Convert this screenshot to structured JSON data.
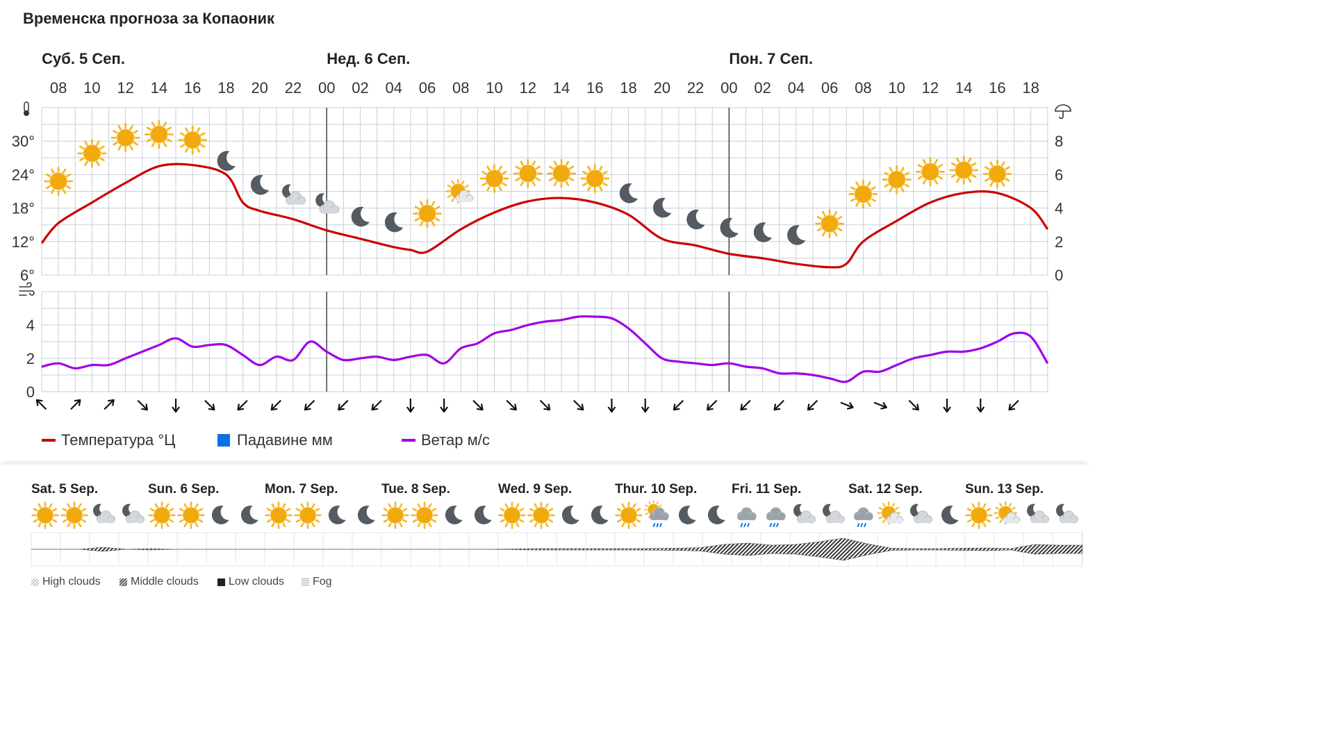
{
  "title": "Временска прогноза за Копаоник",
  "colors": {
    "temperature": "#cc0000",
    "precipitation": "#0a6ee6",
    "wind": "#a000e6",
    "grid": "#c8ced6",
    "day_divider": "#444444",
    "sun": "#f2a90c",
    "moon": "#555b63",
    "cloud": "#d4d7db"
  },
  "legend": {
    "temperature": "Температура °Ц",
    "precipitation": "Падавине мм",
    "wind": "Ветар м/с"
  },
  "chart_data": [
    {
      "type": "line",
      "title": "",
      "days": [
        {
          "label": "Суб. 5 Сеп.",
          "start_hour": "08"
        },
        {
          "label": "Нед. 6 Сеп.",
          "start_hour": "00"
        },
        {
          "label": "Пон. 7 Сеп.",
          "start_hour": "00"
        }
      ],
      "x_ticks": [
        "08",
        "10",
        "12",
        "14",
        "16",
        "18",
        "20",
        "22",
        "00",
        "02",
        "04",
        "06",
        "08",
        "10",
        "12",
        "14",
        "16",
        "18",
        "20",
        "22",
        "00",
        "02",
        "04",
        "06",
        "08",
        "10",
        "12",
        "14",
        "16",
        "18"
      ],
      "y_left": {
        "ticks": [
          "30°",
          "24°",
          "18°",
          "12°",
          "6°"
        ],
        "range": [
          6,
          36
        ],
        "unit": "°C"
      },
      "y_right": {
        "ticks": [
          "8",
          "6",
          "4",
          "2",
          "0"
        ],
        "range": [
          0,
          10
        ],
        "unit": "mm"
      },
      "grid": true,
      "series": [
        {
          "name": "Температура °Ц",
          "x": [
            "07:00",
            "08:00",
            "10:00",
            "12:00",
            "14:00",
            "16:00",
            "18:00",
            "19:00",
            "20:00",
            "22:00",
            "00:00",
            "02:00",
            "04:00",
            "05:00",
            "06:00",
            "08:00",
            "10:00",
            "12:00",
            "14:00",
            "16:00",
            "18:00",
            "20:00",
            "22:00",
            "00:00",
            "02:00",
            "04:00",
            "06:00",
            "07:00",
            "08:00",
            "10:00",
            "12:00",
            "14:00",
            "16:00",
            "18:00",
            "19:00"
          ],
          "y": [
            11.7,
            15.3,
            19.0,
            22.5,
            25.5,
            25.7,
            24.0,
            19.0,
            17.5,
            16.0,
            14.0,
            12.5,
            11.0,
            10.5,
            10.2,
            14.2,
            17.2,
            19.2,
            19.8,
            19.0,
            16.8,
            12.5,
            11.3,
            9.8,
            9.0,
            8.0,
            7.4,
            8.0,
            12.0,
            15.7,
            19.0,
            20.7,
            20.7,
            18.0,
            14.2
          ]
        }
      ],
      "weather_icons": [
        "sun",
        "sun",
        "sun",
        "sun",
        "sun",
        "moon",
        "moon",
        "moon-cloud",
        "moon-cloud",
        "moon",
        "moon",
        "sun",
        "sun-cloud",
        "sun",
        "sun",
        "sun",
        "sun",
        "moon",
        "moon",
        "moon",
        "moon",
        "moon",
        "moon",
        "sun",
        "sun",
        "sun",
        "sun",
        "sun",
        "sun"
      ],
      "weather_icon_levels": [
        22.8,
        27.8,
        30.6,
        31.2,
        30.2,
        26.4,
        22.1,
        20.1,
        18.5,
        16.4,
        15.4,
        17.0,
        20.6,
        23.3,
        24.2,
        24.2,
        23.3,
        20.6,
        18.0,
        15.9,
        14.4,
        13.6,
        13.1,
        15.2,
        20.5,
        23.1,
        24.5,
        24.8,
        24.1
      ]
    },
    {
      "type": "line",
      "title": "",
      "y_left": {
        "ticks": [
          "4",
          "2",
          "0"
        ],
        "range": [
          0,
          6
        ],
        "unit": "m/s"
      },
      "grid": true,
      "series": [
        {
          "name": "Ветар м/с",
          "x": [
            "07:00",
            "08:00",
            "09:00",
            "10:00",
            "11:00",
            "12:00",
            "13:00",
            "14:00",
            "15:00",
            "16:00",
            "17:00",
            "18:00",
            "19:00",
            "20:00",
            "21:00",
            "22:00",
            "23:00",
            "00:00",
            "01:00",
            "02:00",
            "03:00",
            "04:00",
            "05:00",
            "06:00",
            "07:00",
            "08:00",
            "09:00",
            "10:00",
            "11:00",
            "12:00",
            "13:00",
            "14:00",
            "15:00",
            "16:00",
            "17:00",
            "18:00",
            "19:00",
            "20:00",
            "21:00",
            "22:00",
            "23:00",
            "00:00",
            "01:00",
            "02:00",
            "03:00",
            "04:00",
            "05:00",
            "06:00",
            "07:00",
            "08:00",
            "09:00",
            "10:00",
            "11:00",
            "12:00",
            "13:00",
            "14:00",
            "15:00",
            "16:00",
            "17:00",
            "18:00",
            "19:00"
          ],
          "y": [
            1.5,
            1.7,
            1.4,
            1.6,
            1.6,
            2.0,
            2.4,
            2.8,
            3.2,
            2.7,
            2.8,
            2.8,
            2.2,
            1.6,
            2.1,
            1.9,
            3.0,
            2.4,
            1.9,
            2.0,
            2.1,
            1.9,
            2.1,
            2.2,
            1.7,
            2.6,
            2.9,
            3.5,
            3.7,
            4.0,
            4.2,
            4.3,
            4.5,
            4.5,
            4.4,
            3.8,
            2.9,
            2.0,
            1.8,
            1.7,
            1.6,
            1.7,
            1.5,
            1.4,
            1.1,
            1.1,
            1.0,
            0.8,
            0.6,
            1.2,
            1.2,
            1.6,
            2.0,
            2.2,
            2.4,
            2.4,
            2.6,
            3.0,
            3.5,
            3.3,
            1.7
          ]
        }
      ],
      "wind_directions": [
        "NW",
        "NE",
        "NE",
        "SE",
        "S",
        "SE",
        "SW",
        "SW",
        "SW",
        "SW",
        "SW",
        "S",
        "S",
        "SE",
        "SE",
        "SE",
        "SE",
        "S",
        "S",
        "SW",
        "SW",
        "SW",
        "SW",
        "SW",
        "ESE",
        "ESE",
        "SE",
        "S",
        "S",
        "SW"
      ]
    },
    {
      "type": "table",
      "title": "",
      "days": [
        "Sat. 5 Sep.",
        "Sun. 6 Sep.",
        "Mon. 7 Sep.",
        "Tue. 8 Sep.",
        "Wed. 9 Sep.",
        "Thur. 10 Sep.",
        "Fri. 11 Sep.",
        "Sat. 12 Sep.",
        "Sun. 13 Sep."
      ],
      "icons": [
        "sun",
        "sun",
        "moon-cloud",
        "moon-cloud",
        "sun",
        "sun",
        "moon",
        "moon",
        "sun",
        "sun",
        "moon",
        "moon",
        "sun",
        "sun",
        "moon",
        "moon",
        "sun",
        "sun",
        "moon",
        "moon",
        "sun",
        "sun-rain",
        "moon",
        "moon",
        "rain",
        "rain",
        "moon-cloud",
        "moon-cloud",
        "rain",
        "sun-cloud",
        "moon-cloud",
        "moon",
        "sun",
        "sun-cloud",
        "moon-cloud",
        "moon-cloud"
      ],
      "cloud_layers": [
        {
          "name": "High clouds"
        },
        {
          "name": "Middle clouds"
        },
        {
          "name": "Low clouds"
        },
        {
          "name": "Fog"
        }
      ],
      "cloud_cover": [
        0,
        0,
        0,
        0.15,
        0,
        0.05,
        0,
        0,
        0,
        0,
        0,
        0,
        0,
        0,
        0,
        0,
        0,
        0,
        0,
        0,
        0.02,
        0.05,
        0.05,
        0.05,
        0.05,
        0.05,
        0.06,
        0.08,
        0.12,
        0.35,
        0.45,
        0.3,
        0.35,
        0.55,
        0.8,
        0.4,
        0.08,
        0.05,
        0.05,
        0.08,
        0.1,
        0.05,
        0.35,
        0.3,
        0.3
      ]
    }
  ]
}
